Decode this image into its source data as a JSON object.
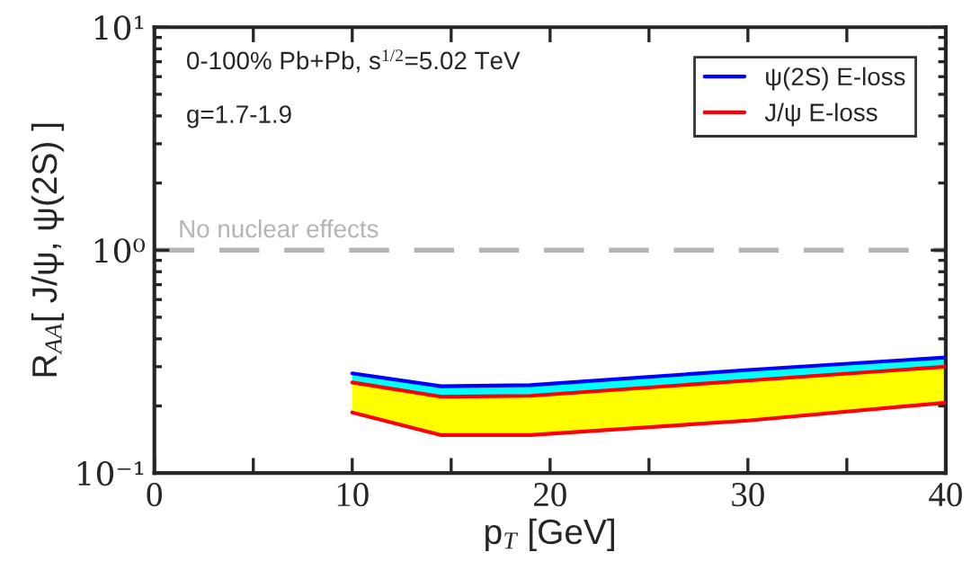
{
  "chart_data": {
    "type": "line",
    "xlabel": "p$_{T}$ [GeV]",
    "ylabel": "R$_{AA}$[ J/ψ, ψ(2S) ]",
    "annotations": [
      "0-100% Pb+Pb, s$^{1/2}$=5.02 TeV",
      "g=1.7-1.9"
    ],
    "x": [
      10,
      14.5,
      19,
      30,
      40
    ],
    "series": [
      {
        "name": "ψ(2S) E-loss",
        "color": "#0000ff",
        "values": [
          0.28,
          0.245,
          0.248,
          0.29,
          0.33
        ],
        "lower": [
          0.255,
          0.22,
          0.222,
          0.26,
          0.3
        ],
        "upper": [
          0.28,
          0.245,
          0.248,
          0.29,
          0.33
        ]
      },
      {
        "name": "J/ψ E-loss",
        "color": "#ff0000",
        "values": [
          0.255,
          0.22,
          0.222,
          0.26,
          0.3
        ],
        "lower": [
          0.187,
          0.148,
          0.148,
          0.172,
          0.207
        ],
        "upper": [
          0.255,
          0.22,
          0.222,
          0.26,
          0.3
        ]
      },
      {
        "color": "#ff0000",
        "values": [
          0.187,
          0.148,
          0.148,
          0.172,
          0.207
        ]
      }
    ],
    "ref_lines": [
      {
        "axis": "y",
        "value": 1,
        "label": "No nuclear effects",
        "color": "#b4b4b4",
        "line_style": "dashed"
      }
    ],
    "log": "y",
    "xlim": [
      0,
      40
    ],
    "xticks": [
      0,
      {
        "value": 5,
        "label": null
      },
      10,
      {
        "value": 15,
        "label": null
      },
      20,
      {
        "value": 25,
        "label": null
      },
      30,
      {
        "value": 35,
        "label": null
      },
      40
    ],
    "ylim": [
      0.1,
      10
    ],
    "yticks": [
      {
        "value": 0.1,
        "label": "10⁻¹"
      },
      {
        "value": 1,
        "label": "10⁰"
      },
      {
        "value": 10,
        "label": "10¹"
      }
    ],
    "legend": "top right",
    "grid": false
  }
}
